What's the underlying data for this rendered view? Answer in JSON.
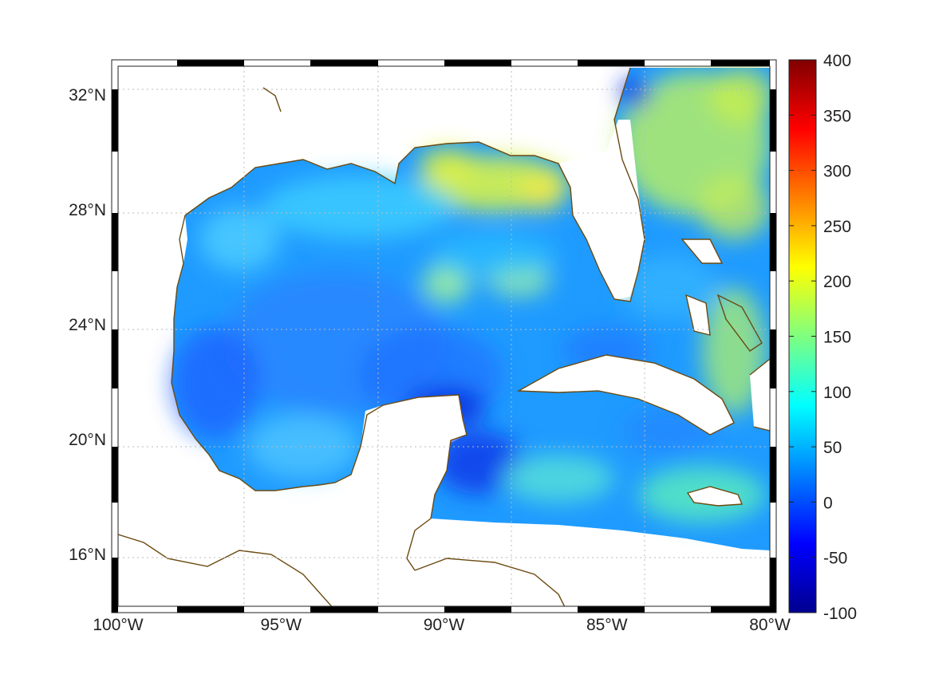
{
  "map": {
    "lon_range": [
      -100,
      -80
    ],
    "lat_range": [
      14.2,
      33
    ],
    "lon_ticks": [
      {
        "value": -100,
        "label": "100°W"
      },
      {
        "value": -95,
        "label": "95°W"
      },
      {
        "value": -90,
        "label": "90°W"
      },
      {
        "value": -85,
        "label": "85°W"
      },
      {
        "value": -80,
        "label": "80°W"
      }
    ],
    "lat_ticks": [
      {
        "value": 32,
        "label": "32°N"
      },
      {
        "value": 28,
        "label": "28°N"
      },
      {
        "value": 24,
        "label": "24°N"
      },
      {
        "value": 20,
        "label": "20°N"
      },
      {
        "value": 16,
        "label": "16°N"
      }
    ],
    "grid": "dotted",
    "colormap": "jet",
    "coastline_color": "#6b4a10",
    "land_color": "#ffffff"
  },
  "colorbar": {
    "range": [
      -100,
      400
    ],
    "ticks": [
      {
        "value": 400,
        "label": "400"
      },
      {
        "value": 350,
        "label": "350"
      },
      {
        "value": 300,
        "label": "300"
      },
      {
        "value": 250,
        "label": "250"
      },
      {
        "value": 200,
        "label": "200"
      },
      {
        "value": 150,
        "label": "150"
      },
      {
        "value": 100,
        "label": "100"
      },
      {
        "value": 50,
        "label": "50"
      },
      {
        "value": 0,
        "label": "0"
      },
      {
        "value": -50,
        "label": "-50"
      },
      {
        "value": -100,
        "label": "-100"
      }
    ]
  }
}
